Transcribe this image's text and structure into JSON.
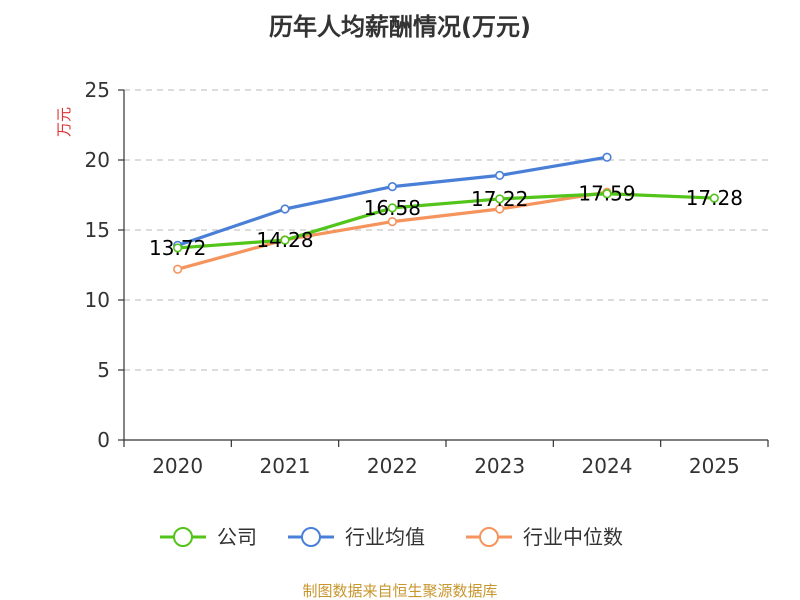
{
  "chart_data": {
    "type": "line",
    "title": "历年人均薪酬情况(万元)",
    "ylabel": "万元",
    "xlabel": "",
    "categories": [
      "2020",
      "2021",
      "2022",
      "2023",
      "2024",
      "2025"
    ],
    "ylim": [
      0,
      25
    ],
    "yticks": [
      0,
      5,
      10,
      15,
      20,
      25
    ],
    "grid": true,
    "legend_position": "bottom",
    "series": [
      {
        "name": "公司",
        "color": "#52c41a",
        "values": [
          13.72,
          14.28,
          16.58,
          17.22,
          17.59,
          17.28
        ],
        "labels": [
          "13.72",
          "14.28",
          "16.58",
          "17.22",
          "17.59",
          "17.28"
        ]
      },
      {
        "name": "行业均值",
        "color": "#4a7fd8",
        "values": [
          13.9,
          16.5,
          18.1,
          18.9,
          20.2,
          null
        ]
      },
      {
        "name": "行业中位数",
        "color": "#f5945c",
        "values": [
          12.2,
          14.3,
          15.6,
          16.5,
          17.7,
          null
        ]
      }
    ],
    "ylabel_color": "#e03030"
  },
  "footer": {
    "source": "制图数据来自恒生聚源数据库",
    "source_color": "#c8962e"
  }
}
